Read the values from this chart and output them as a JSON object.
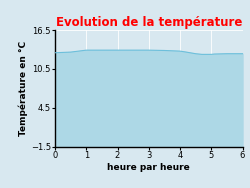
{
  "title": "Evolution de la température",
  "title_color": "#ff0000",
  "xlabel": "heure par heure",
  "ylabel": "Température en °C",
  "xlim": [
    0,
    6
  ],
  "ylim": [
    -1.5,
    16.5
  ],
  "xticks": [
    0,
    1,
    2,
    3,
    4,
    5,
    6
  ],
  "yticks": [
    -1.5,
    4.5,
    10.5,
    16.5
  ],
  "x": [
    0,
    0.5,
    1.0,
    1.5,
    2.0,
    2.5,
    3.0,
    3.5,
    4.0,
    4.2,
    4.5,
    4.7,
    5.0,
    5.1,
    5.5,
    6.0
  ],
  "y": [
    13.0,
    13.1,
    13.4,
    13.4,
    13.4,
    13.4,
    13.4,
    13.35,
    13.25,
    13.1,
    12.85,
    12.75,
    12.75,
    12.8,
    12.85,
    12.85
  ],
  "fill_color": "#add8e6",
  "line_color": "#6dbfdb",
  "background_color": "#d8e8f0",
  "plot_bg_color": "#d8e8f0",
  "grid_color": "#ffffff",
  "title_fontsize": 8.5,
  "axis_fontsize": 6,
  "label_fontsize": 6.5
}
